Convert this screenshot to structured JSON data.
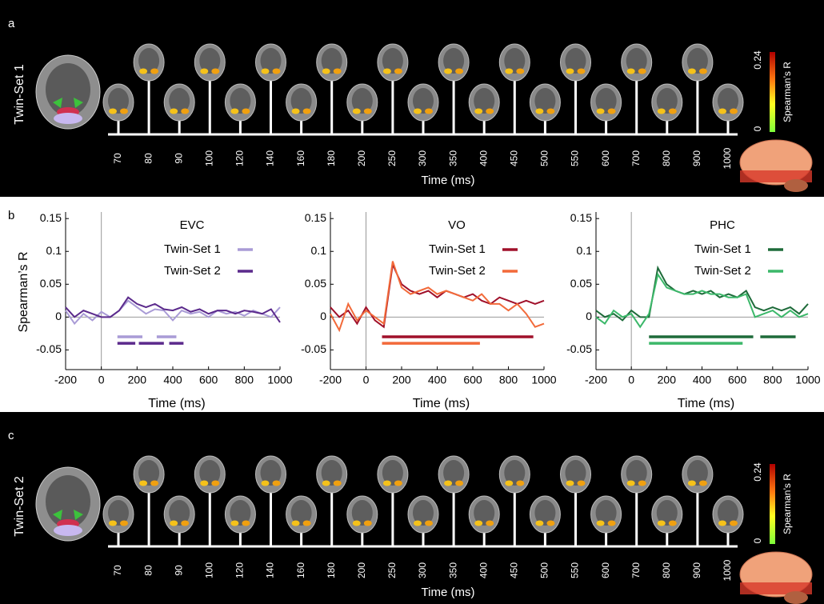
{
  "panels": [
    {
      "label": "a",
      "title": "Twin-Set 1",
      "times": [
        70,
        80,
        90,
        100,
        120,
        140,
        160,
        180,
        200,
        250,
        300,
        350,
        400,
        450,
        500,
        550,
        600,
        700,
        800,
        900,
        1000
      ],
      "xlabel": "Time (ms)",
      "colorbar": {
        "ticks": [
          0,
          0.24
        ],
        "label": "Spearman’s R"
      }
    },
    {
      "label": "c",
      "title": "Twin-Set 2",
      "times": [
        70,
        80,
        90,
        100,
        120,
        140,
        160,
        180,
        200,
        250,
        300,
        350,
        400,
        450,
        500,
        550,
        600,
        700,
        800,
        900,
        1000
      ],
      "xlabel": "Time (ms)",
      "colorbar": {
        "ticks": [
          0,
          0.24
        ],
        "label": "Spearman’s R"
      }
    }
  ],
  "panel_b_label": "b",
  "chart_data": [
    {
      "type": "line",
      "title": "EVC",
      "xlabel": "Time (ms)",
      "ylabel": "Spearman’s R",
      "x": [
        -200,
        -150,
        -100,
        -50,
        0,
        50,
        100,
        150,
        200,
        250,
        300,
        350,
        400,
        450,
        500,
        550,
        600,
        650,
        700,
        750,
        800,
        850,
        900,
        950,
        1000
      ],
      "series": [
        {
          "name": "Twin-Set 1",
          "color": "#a99bd6",
          "values": [
            0.01,
            -0.01,
            0.005,
            -0.005,
            0.008,
            0,
            0.01,
            0.025,
            0.015,
            0.005,
            0.012,
            0.01,
            -0.005,
            0.01,
            0.005,
            0.008,
            0,
            0.01,
            0.005,
            0.008,
            0.002,
            0.01,
            0.005,
            0,
            0.015
          ],
          "significant": [
            [
              90,
              230
            ],
            [
              310,
              420
            ]
          ],
          "sig_y": -0.03
        },
        {
          "name": "Twin-Set 2",
          "color": "#5b2a8c",
          "values": [
            0.015,
            0,
            0.01,
            0.005,
            0,
            0,
            0.01,
            0.03,
            0.02,
            0.015,
            0.02,
            0.012,
            0.01,
            0.015,
            0.008,
            0.012,
            0.005,
            0.01,
            0.01,
            0.005,
            0.01,
            0.008,
            0.005,
            0.012,
            -0.008
          ],
          "significant": [
            [
              90,
              190
            ],
            [
              210,
              350
            ],
            [
              380,
              460
            ]
          ],
          "sig_y": -0.04
        }
      ],
      "xlim": [
        -200,
        1000
      ],
      "ylim": [
        -0.08,
        0.16
      ],
      "xticks": [
        -200,
        0,
        200,
        400,
        600,
        800,
        1000
      ],
      "yticks": [
        -0.05,
        0,
        0.05,
        0.1,
        0.15
      ]
    },
    {
      "type": "line",
      "title": "VO",
      "xlabel": "Time (ms)",
      "x": [
        -200,
        -150,
        -100,
        -50,
        0,
        50,
        100,
        150,
        200,
        250,
        300,
        350,
        400,
        450,
        500,
        550,
        600,
        650,
        700,
        750,
        800,
        850,
        900,
        950,
        1000
      ],
      "series": [
        {
          "name": "Twin-Set 1",
          "color": "#a0102a",
          "values": [
            0.015,
            0,
            0.01,
            -0.01,
            0.015,
            -0.005,
            -0.015,
            0.08,
            0.05,
            0.04,
            0.035,
            0.04,
            0.03,
            0.04,
            0.035,
            0.03,
            0.035,
            0.025,
            0.02,
            0.03,
            0.025,
            0.02,
            0.025,
            0.02,
            0.025
          ],
          "significant": [
            [
              90,
              940
            ]
          ],
          "sig_y": -0.03
        },
        {
          "name": "Twin-Set 2",
          "color": "#f26a3a",
          "values": [
            0.005,
            -0.02,
            0.02,
            -0.005,
            0.01,
            0,
            -0.01,
            0.085,
            0.045,
            0.035,
            0.04,
            0.045,
            0.035,
            0.04,
            0.035,
            0.03,
            0.025,
            0.035,
            0.02,
            0.02,
            0.01,
            0.02,
            0.005,
            -0.015,
            -0.01
          ],
          "significant": [
            [
              90,
              640
            ]
          ],
          "sig_y": -0.04
        }
      ],
      "xlim": [
        -200,
        1000
      ],
      "ylim": [
        -0.08,
        0.16
      ],
      "xticks": [
        -200,
        0,
        200,
        400,
        600,
        800,
        1000
      ],
      "yticks": [
        -0.05,
        0,
        0.05,
        0.1,
        0.15
      ]
    },
    {
      "type": "line",
      "title": "PHC",
      "xlabel": "Time (ms)",
      "x": [
        -200,
        -150,
        -100,
        -50,
        0,
        50,
        100,
        150,
        200,
        250,
        300,
        350,
        400,
        450,
        500,
        550,
        600,
        650,
        700,
        750,
        800,
        850,
        900,
        950,
        1000
      ],
      "series": [
        {
          "name": "Twin-Set 1",
          "color": "#1e6b3a",
          "values": [
            0.01,
            0,
            0.005,
            -0.005,
            0.01,
            0,
            0,
            0.075,
            0.05,
            0.04,
            0.035,
            0.04,
            0.035,
            0.04,
            0.03,
            0.035,
            0.03,
            0.04,
            0.015,
            0.01,
            0.015,
            0.01,
            0.015,
            0.005,
            0.02
          ],
          "significant": [
            [
              100,
              690
            ],
            [
              730,
              930
            ]
          ],
          "sig_y": -0.03
        },
        {
          "name": "Twin-Set 2",
          "color": "#3cb86a",
          "values": [
            0,
            -0.01,
            0.01,
            0,
            0.005,
            -0.015,
            0.005,
            0.065,
            0.045,
            0.04,
            0.035,
            0.035,
            0.04,
            0.035,
            0.035,
            0.03,
            0.03,
            0.035,
            0,
            0.005,
            0.01,
            0,
            0.01,
            0,
            0.005
          ],
          "significant": [
            [
              100,
              630
            ]
          ],
          "sig_y": -0.04
        }
      ],
      "xlim": [
        -200,
        1000
      ],
      "ylim": [
        -0.08,
        0.16
      ],
      "xticks": [
        -200,
        0,
        200,
        400,
        600,
        800,
        1000
      ],
      "yticks": [
        -0.05,
        0,
        0.05,
        0.1,
        0.15
      ]
    }
  ]
}
